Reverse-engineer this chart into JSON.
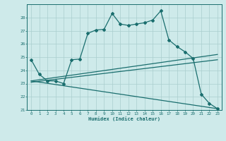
{
  "xlabel": "Humidex (Indice chaleur)",
  "xlim": [
    -0.5,
    23.5
  ],
  "ylim": [
    21,
    29
  ],
  "yticks": [
    21,
    22,
    23,
    24,
    25,
    26,
    27,
    28
  ],
  "xticks": [
    0,
    1,
    2,
    3,
    4,
    5,
    6,
    7,
    8,
    9,
    10,
    11,
    12,
    13,
    14,
    15,
    16,
    17,
    18,
    19,
    20,
    21,
    22,
    23
  ],
  "bg_color": "#ceeaea",
  "grid_color": "#aacece",
  "line_color": "#1a6e6e",
  "line1_x": [
    0,
    1,
    2,
    3,
    4,
    5,
    6,
    7,
    8,
    9,
    10,
    11,
    12,
    13,
    14,
    15,
    16,
    17,
    18,
    19,
    20,
    21,
    22,
    23
  ],
  "line1_y": [
    24.8,
    23.7,
    23.2,
    23.2,
    23.0,
    24.8,
    24.85,
    26.8,
    27.05,
    27.1,
    28.3,
    27.5,
    27.4,
    27.5,
    27.6,
    27.8,
    28.5,
    26.3,
    25.8,
    25.4,
    24.9,
    22.2,
    21.5,
    21.1
  ],
  "line2_x": [
    0,
    23
  ],
  "line2_y": [
    23.2,
    25.2
  ],
  "line3_x": [
    0,
    23
  ],
  "line3_y": [
    23.1,
    24.8
  ],
  "line4_x": [
    0,
    23
  ],
  "line4_y": [
    23.2,
    21.1
  ]
}
